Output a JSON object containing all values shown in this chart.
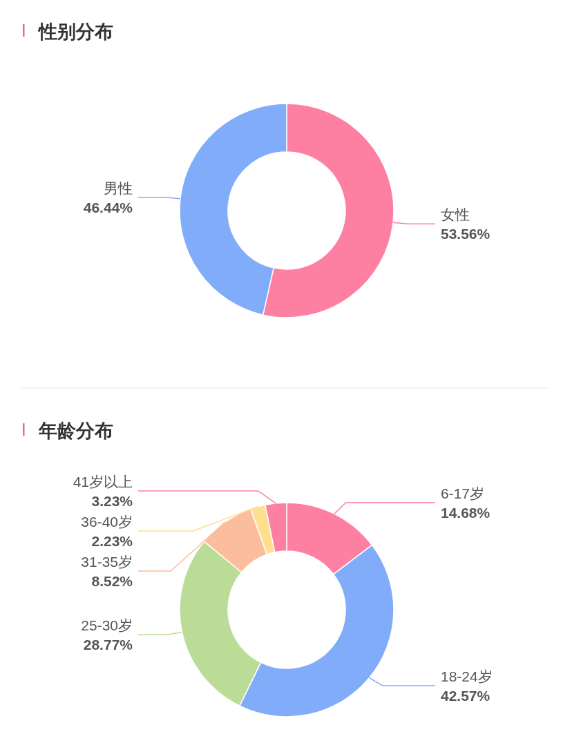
{
  "chart_data": [
    {
      "type": "donut",
      "title": "性别分布",
      "categories": [
        "女性",
        "男性"
      ],
      "values": [
        53.56,
        46.44
      ],
      "value_labels": [
        "53.56%",
        "46.44%"
      ],
      "colors": [
        "#fd7fa2",
        "#80acfa"
      ]
    },
    {
      "type": "donut",
      "title": "年龄分布",
      "categories": [
        "6-17岁",
        "18-24岁",
        "25-30岁",
        "31-35岁",
        "36-40岁",
        "41岁以上"
      ],
      "values": [
        14.68,
        42.57,
        28.77,
        8.52,
        2.23,
        3.23
      ],
      "value_labels": [
        "14.68%",
        "42.57%",
        "28.77%",
        "8.52%",
        "2.23%",
        "3.23%"
      ],
      "colors": [
        "#fd7fa2",
        "#80acfa",
        "#bbdc96",
        "#fbbd9b",
        "#fddf8f",
        "#fd7fa2"
      ]
    }
  ]
}
